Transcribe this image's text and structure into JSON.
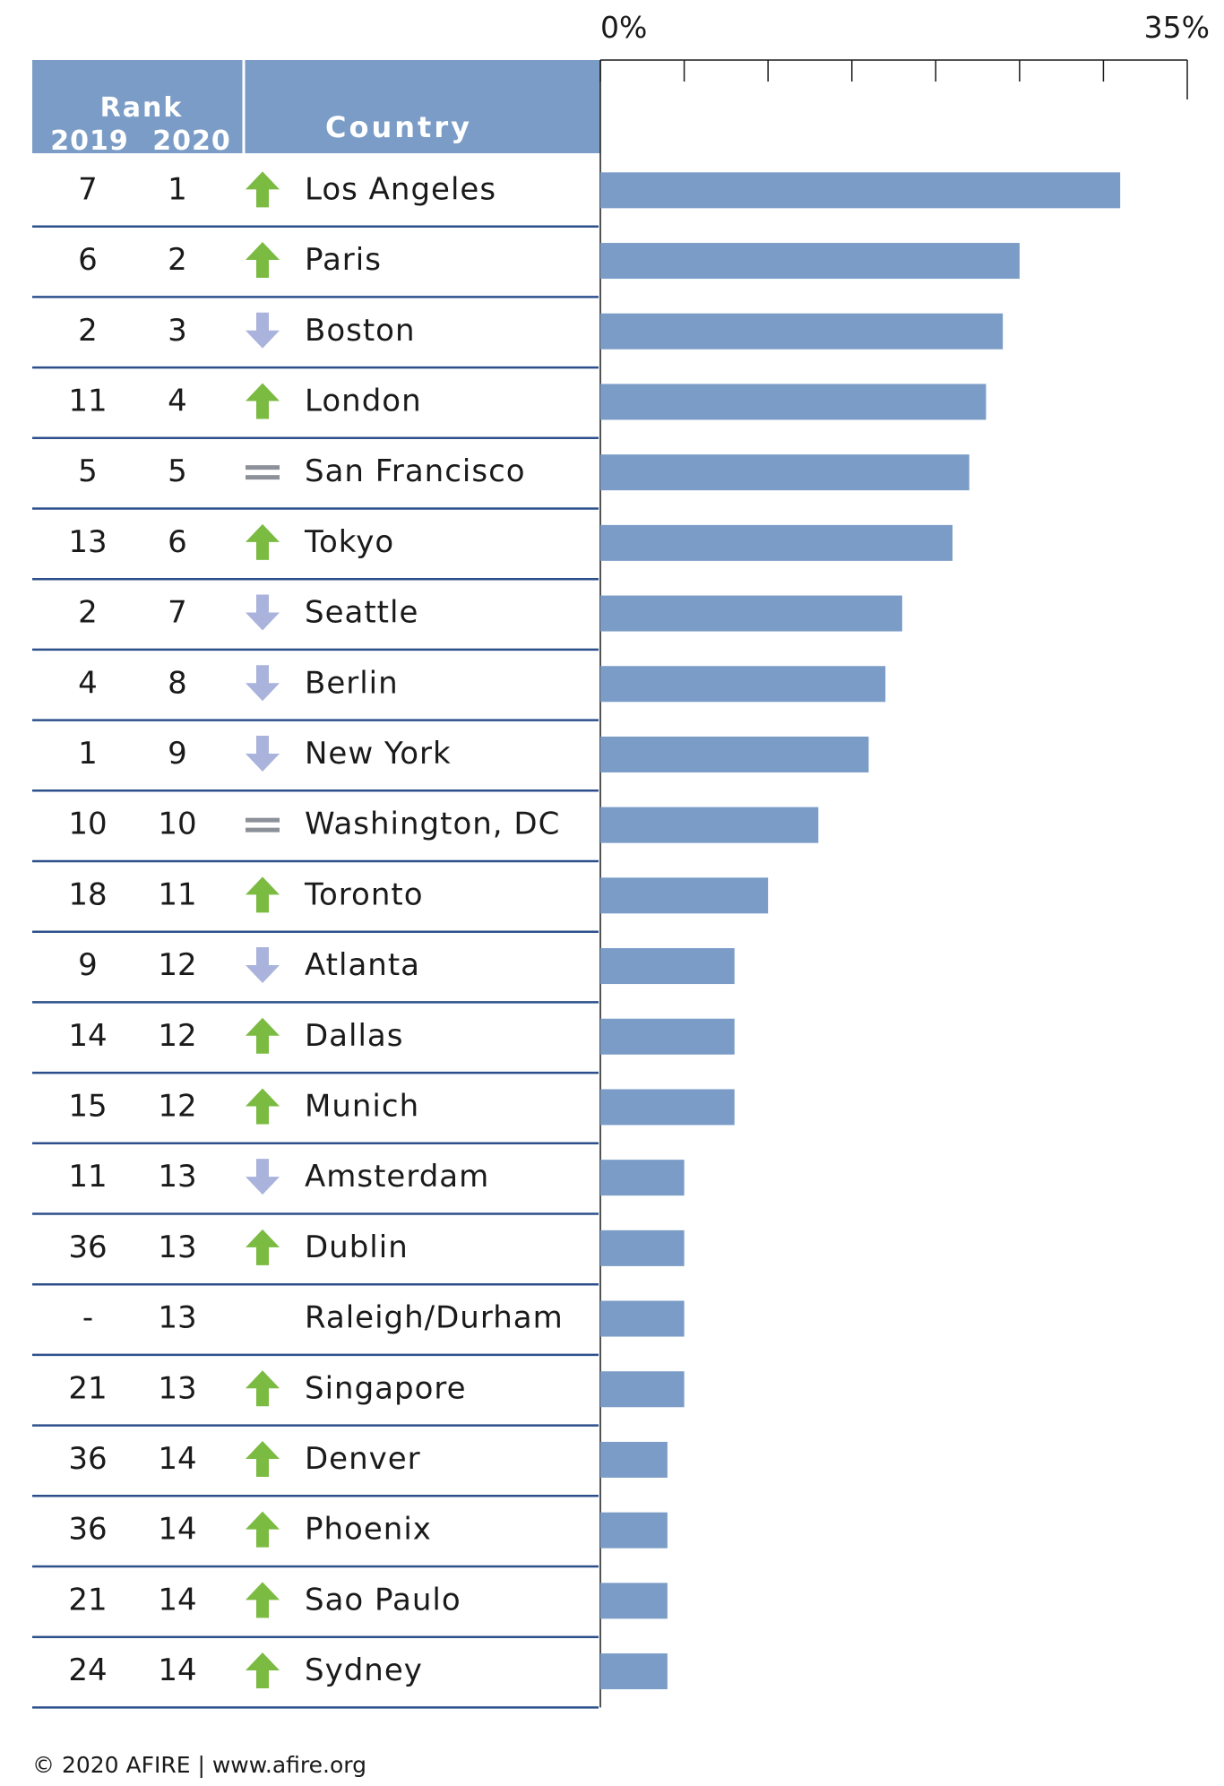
{
  "chart_data": {
    "type": "bar",
    "orientation": "horizontal",
    "header": {
      "rank_label": "Rank",
      "year_2019": "2019",
      "year_2020": "2020",
      "country_label": "Country"
    },
    "axis": {
      "min": 0,
      "max": 35,
      "min_label": "0%",
      "max_label": "35%",
      "tick_step": 5
    },
    "rows": [
      {
        "rank_2019": "7",
        "rank_2020": "1",
        "change": "up",
        "city": "Los Angeles",
        "value": 31
      },
      {
        "rank_2019": "6",
        "rank_2020": "2",
        "change": "up",
        "city": "Paris",
        "value": 25
      },
      {
        "rank_2019": "2",
        "rank_2020": "3",
        "change": "down",
        "city": "Boston",
        "value": 24
      },
      {
        "rank_2019": "11",
        "rank_2020": "4",
        "change": "up",
        "city": "London",
        "value": 23
      },
      {
        "rank_2019": "5",
        "rank_2020": "5",
        "change": "same",
        "city": "San Francisco",
        "value": 22
      },
      {
        "rank_2019": "13",
        "rank_2020": "6",
        "change": "up",
        "city": "Tokyo",
        "value": 21
      },
      {
        "rank_2019": "2",
        "rank_2020": "7",
        "change": "down",
        "city": "Seattle",
        "value": 18
      },
      {
        "rank_2019": "4",
        "rank_2020": "8",
        "change": "down",
        "city": "Berlin",
        "value": 17
      },
      {
        "rank_2019": "1",
        "rank_2020": "9",
        "change": "down",
        "city": "New York",
        "value": 16
      },
      {
        "rank_2019": "10",
        "rank_2020": "10",
        "change": "same",
        "city": "Washington, DC",
        "value": 13
      },
      {
        "rank_2019": "18",
        "rank_2020": "11",
        "change": "up",
        "city": "Toronto",
        "value": 10
      },
      {
        "rank_2019": "9",
        "rank_2020": "12",
        "change": "down",
        "city": "Atlanta",
        "value": 8
      },
      {
        "rank_2019": "14",
        "rank_2020": "12",
        "change": "up",
        "city": "Dallas",
        "value": 8
      },
      {
        "rank_2019": "15",
        "rank_2020": "12",
        "change": "up",
        "city": "Munich",
        "value": 8
      },
      {
        "rank_2019": "11",
        "rank_2020": "13",
        "change": "down",
        "city": "Amsterdam",
        "value": 5
      },
      {
        "rank_2019": "36",
        "rank_2020": "13",
        "change": "up",
        "city": "Dublin",
        "value": 5
      },
      {
        "rank_2019": "-",
        "rank_2020": "13",
        "change": "none",
        "city": "Raleigh/Durham",
        "value": 5
      },
      {
        "rank_2019": "21",
        "rank_2020": "13",
        "change": "up",
        "city": "Singapore",
        "value": 5
      },
      {
        "rank_2019": "36",
        "rank_2020": "14",
        "change": "up",
        "city": "Denver",
        "value": 4
      },
      {
        "rank_2019": "36",
        "rank_2020": "14",
        "change": "up",
        "city": "Phoenix",
        "value": 4
      },
      {
        "rank_2019": "21",
        "rank_2020": "14",
        "change": "up",
        "city": "Sao Paulo",
        "value": 4
      },
      {
        "rank_2019": "24",
        "rank_2020": "14",
        "change": "up",
        "city": "Sydney",
        "value": 4
      }
    ]
  },
  "colors": {
    "header_fill": "#7a9cc6",
    "header_text": "#ffffff",
    "bar": "#7a9cc6",
    "divider": "#2c4f8c",
    "up_arrow": "#7bbb42",
    "down_arrow": "#a9b3dc",
    "equal_sign": "#8c9199",
    "text": "#1a1a1a"
  },
  "footer": {
    "text": "© 2020 AFIRE | www.afire.org"
  }
}
